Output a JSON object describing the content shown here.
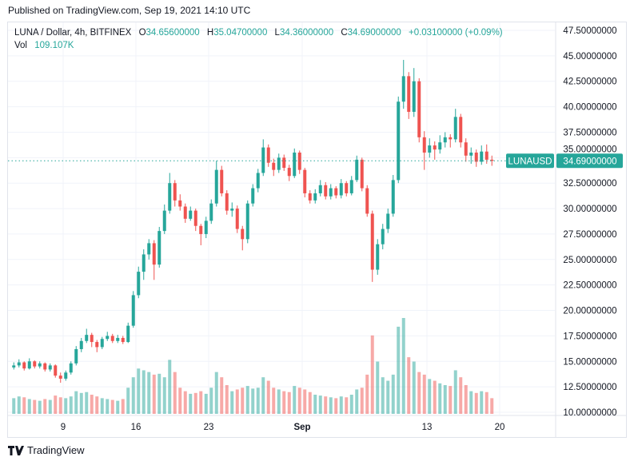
{
  "published": "Published on TradingView.com, Sep 19, 2021 14:10 UTC",
  "legend": {
    "symbol": "LUNA / Dollar, 4h, BITFINEX",
    "o_label": "O",
    "o": "34.65600000",
    "h_label": "H",
    "h": "35.04700000",
    "l_label": "L",
    "l": "34.36000000",
    "c_label": "C",
    "c": "34.69000000",
    "change": "+0.03100000 (+0.09%)",
    "vol_label": "Vol",
    "vol": "109.107K"
  },
  "price_label": {
    "symbol": "LUNAUSD",
    "value": "34.69000000"
  },
  "footer": {
    "brand": "TradingView"
  },
  "colors": {
    "up": "#26a69a",
    "down": "#ef5350",
    "grid": "#f0f3fa",
    "axis_text": "#131722"
  },
  "chart_data": {
    "type": "candlestick",
    "title": "",
    "interval_shown": "4h",
    "note_resolution": "approximate, aggregated to 12h",
    "ylim": [
      10,
      47.5
    ],
    "y_ticks": [
      "10.00000000",
      "12.50000000",
      "15.00000000",
      "17.50000000",
      "20.00000000",
      "22.50000000",
      "25.00000000",
      "27.50000000",
      "30.00000000",
      "32.50000000",
      "35.00000000",
      "37.50000000",
      "40.00000000",
      "42.50000000",
      "45.00000000",
      "47.50000000"
    ],
    "x_ticks": [
      {
        "label": "9",
        "date": "2021-08-09"
      },
      {
        "label": "16",
        "date": "2021-08-16"
      },
      {
        "label": "23",
        "date": "2021-08-23"
      },
      {
        "label": "Sep",
        "date": "2021-09-01"
      },
      {
        "label": "13",
        "date": "2021-09-13"
      },
      {
        "label": "20",
        "date": "2021-09-20"
      }
    ],
    "xlim": [
      "2021-08-04",
      "2021-09-24"
    ],
    "last_price": 34.69,
    "grid": true,
    "columns": [
      "time",
      "open",
      "high",
      "low",
      "close",
      "volume_k"
    ],
    "candles": [
      [
        "2021-08-04 00:00",
        14.4,
        14.9,
        14.2,
        14.6,
        180
      ],
      [
        "2021-08-04 12:00",
        14.6,
        15.2,
        14.4,
        14.9,
        200
      ],
      [
        "2021-08-05 00:00",
        14.9,
        15.0,
        14.1,
        14.3,
        190
      ],
      [
        "2021-08-05 12:00",
        14.3,
        15.3,
        14.2,
        15.0,
        170
      ],
      [
        "2021-08-06 00:00",
        15.0,
        15.1,
        14.3,
        14.5,
        160
      ],
      [
        "2021-08-06 12:00",
        14.5,
        15.0,
        14.3,
        14.8,
        150
      ],
      [
        "2021-08-07 00:00",
        14.8,
        14.9,
        14.0,
        14.2,
        170
      ],
      [
        "2021-08-07 12:00",
        14.2,
        14.8,
        14.0,
        14.6,
        160
      ],
      [
        "2021-08-08 00:00",
        14.6,
        14.7,
        13.4,
        13.6,
        210
      ],
      [
        "2021-08-08 12:00",
        13.6,
        13.9,
        12.9,
        13.3,
        190
      ],
      [
        "2021-08-09 00:00",
        13.3,
        14.1,
        13.1,
        13.9,
        180
      ],
      [
        "2021-08-09 12:00",
        13.9,
        15.0,
        13.7,
        14.8,
        200
      ],
      [
        "2021-08-10 00:00",
        14.8,
        16.5,
        14.6,
        16.2,
        260
      ],
      [
        "2021-08-10 12:00",
        16.2,
        17.3,
        15.9,
        17.0,
        240
      ],
      [
        "2021-08-11 00:00",
        17.0,
        18.2,
        16.8,
        17.6,
        250
      ],
      [
        "2021-08-11 12:00",
        17.6,
        17.8,
        16.4,
        16.9,
        220
      ],
      [
        "2021-08-12 00:00",
        16.9,
        17.1,
        15.9,
        16.4,
        200
      ],
      [
        "2021-08-12 12:00",
        16.4,
        17.4,
        16.2,
        17.2,
        180
      ],
      [
        "2021-08-13 00:00",
        17.2,
        17.9,
        17.0,
        17.5,
        170
      ],
      [
        "2021-08-13 12:00",
        17.5,
        17.7,
        16.8,
        17.0,
        160
      ],
      [
        "2021-08-14 00:00",
        17.0,
        17.6,
        16.8,
        17.3,
        150
      ],
      [
        "2021-08-14 12:00",
        17.3,
        17.5,
        16.7,
        16.9,
        170
      ],
      [
        "2021-08-15 00:00",
        16.9,
        18.8,
        16.8,
        18.5,
        300
      ],
      [
        "2021-08-15 12:00",
        18.5,
        21.9,
        18.3,
        21.5,
        420
      ],
      [
        "2021-08-16 00:00",
        21.5,
        24.3,
        21.2,
        23.8,
        520
      ],
      [
        "2021-08-16 12:00",
        23.8,
        26.0,
        23.0,
        25.5,
        500
      ],
      [
        "2021-08-17 00:00",
        25.5,
        27.0,
        25.0,
        26.6,
        480
      ],
      [
        "2021-08-17 12:00",
        26.6,
        26.9,
        23.0,
        24.5,
        450
      ],
      [
        "2021-08-18 00:00",
        24.5,
        28.2,
        24.2,
        27.8,
        460
      ],
      [
        "2021-08-18 12:00",
        27.8,
        30.4,
        27.5,
        29.8,
        420
      ],
      [
        "2021-08-19 00:00",
        29.8,
        33.5,
        29.5,
        32.5,
        620
      ],
      [
        "2021-08-19 12:00",
        32.5,
        32.8,
        30.2,
        30.8,
        480
      ],
      [
        "2021-08-20 00:00",
        30.8,
        31.4,
        29.8,
        30.2,
        300
      ],
      [
        "2021-08-20 12:00",
        30.2,
        30.5,
        28.6,
        29.0,
        260
      ],
      [
        "2021-08-21 00:00",
        29.0,
        30.2,
        28.8,
        29.8,
        230
      ],
      [
        "2021-08-21 12:00",
        29.8,
        30.0,
        27.8,
        28.3,
        240
      ],
      [
        "2021-08-22 00:00",
        28.3,
        28.5,
        26.4,
        27.5,
        260
      ],
      [
        "2021-08-22 12:00",
        27.5,
        29.2,
        27.1,
        28.8,
        230
      ],
      [
        "2021-08-23 00:00",
        28.8,
        30.9,
        28.5,
        30.5,
        300
      ],
      [
        "2021-08-23 12:00",
        30.5,
        34.7,
        30.2,
        33.8,
        480
      ],
      [
        "2021-08-24 00:00",
        33.8,
        34.2,
        31.2,
        31.5,
        420
      ],
      [
        "2021-08-24 12:00",
        31.5,
        31.8,
        29.4,
        29.8,
        330
      ],
      [
        "2021-08-25 00:00",
        29.8,
        30.6,
        29.2,
        30.0,
        260
      ],
      [
        "2021-08-25 12:00",
        30.0,
        30.3,
        27.6,
        28.0,
        280
      ],
      [
        "2021-08-26 00:00",
        28.0,
        28.3,
        25.9,
        27.0,
        300
      ],
      [
        "2021-08-26 12:00",
        27.0,
        30.8,
        26.6,
        30.5,
        320
      ],
      [
        "2021-08-27 00:00",
        30.5,
        32.4,
        30.2,
        32.0,
        290
      ],
      [
        "2021-08-27 12:00",
        32.0,
        33.9,
        31.6,
        33.5,
        300
      ],
      [
        "2021-08-28 00:00",
        33.5,
        36.8,
        33.2,
        36.0,
        420
      ],
      [
        "2021-08-28 12:00",
        36.0,
        36.3,
        34.1,
        34.5,
        380
      ],
      [
        "2021-08-29 00:00",
        34.5,
        34.9,
        33.2,
        33.8,
        300
      ],
      [
        "2021-08-29 12:00",
        33.8,
        35.4,
        33.5,
        35.0,
        280
      ],
      [
        "2021-08-30 00:00",
        35.0,
        35.3,
        33.7,
        34.0,
        260
      ],
      [
        "2021-08-30 12:00",
        34.0,
        34.3,
        32.7,
        33.2,
        250
      ],
      [
        "2021-08-31 00:00",
        33.2,
        35.9,
        33.0,
        35.5,
        320
      ],
      [
        "2021-08-31 12:00",
        35.5,
        35.7,
        33.4,
        33.8,
        300
      ],
      [
        "2021-09-01 00:00",
        33.8,
        34.0,
        31.1,
        31.5,
        280
      ],
      [
        "2021-09-01 12:00",
        31.5,
        31.8,
        30.5,
        30.8,
        250
      ],
      [
        "2021-09-02 00:00",
        30.8,
        31.9,
        30.5,
        31.5,
        220
      ],
      [
        "2021-09-02 12:00",
        31.5,
        32.8,
        31.2,
        32.3,
        210
      ],
      [
        "2021-09-03 00:00",
        32.3,
        32.6,
        30.9,
        31.2,
        200
      ],
      [
        "2021-09-03 12:00",
        31.2,
        32.4,
        30.9,
        32.0,
        190
      ],
      [
        "2021-09-04 00:00",
        32.0,
        32.2,
        31.0,
        31.3,
        180
      ],
      [
        "2021-09-04 12:00",
        31.3,
        32.9,
        31.0,
        32.5,
        200
      ],
      [
        "2021-09-05 00:00",
        32.5,
        32.7,
        31.2,
        31.5,
        190
      ],
      [
        "2021-09-05 12:00",
        31.5,
        33.2,
        31.3,
        32.8,
        220
      ],
      [
        "2021-09-06 00:00",
        32.8,
        35.2,
        32.6,
        34.8,
        280
      ],
      [
        "2021-09-06 12:00",
        34.8,
        35.0,
        31.7,
        32.0,
        300
      ],
      [
        "2021-09-07 00:00",
        32.0,
        32.3,
        29.2,
        29.5,
        450
      ],
      [
        "2021-09-07 12:00",
        29.5,
        29.8,
        22.8,
        24.0,
        900
      ],
      [
        "2021-09-08 00:00",
        24.0,
        27.0,
        23.5,
        26.5,
        600
      ],
      [
        "2021-09-08 12:00",
        26.5,
        28.5,
        26.0,
        28.0,
        420
      ],
      [
        "2021-09-09 00:00",
        28.0,
        30.0,
        27.6,
        29.5,
        380
      ],
      [
        "2021-09-09 12:00",
        29.5,
        33.3,
        29.2,
        32.8,
        450
      ],
      [
        "2021-09-10 00:00",
        32.8,
        41.0,
        32.5,
        40.5,
        1000
      ],
      [
        "2021-09-10 12:00",
        40.5,
        44.6,
        39.8,
        43.0,
        1100
      ],
      [
        "2021-09-11 00:00",
        43.0,
        43.4,
        38.8,
        39.5,
        650
      ],
      [
        "2021-09-11 12:00",
        39.5,
        43.8,
        39.0,
        42.5,
        600
      ],
      [
        "2021-09-12 00:00",
        42.5,
        42.8,
        36.5,
        37.0,
        480
      ],
      [
        "2021-09-12 12:00",
        37.0,
        37.6,
        33.8,
        35.5,
        450
      ],
      [
        "2021-09-13 00:00",
        35.5,
        36.9,
        35.0,
        36.2,
        400
      ],
      [
        "2021-09-13 12:00",
        36.2,
        36.6,
        34.8,
        35.8,
        380
      ],
      [
        "2021-09-14 00:00",
        35.8,
        37.2,
        35.4,
        36.5,
        350
      ],
      [
        "2021-09-14 12:00",
        36.5,
        37.5,
        36.0,
        37.0,
        330
      ],
      [
        "2021-09-15 00:00",
        37.0,
        37.3,
        36.0,
        36.8,
        320
      ],
      [
        "2021-09-15 12:00",
        36.8,
        39.8,
        36.5,
        39.0,
        500
      ],
      [
        "2021-09-16 00:00",
        39.0,
        39.3,
        36.0,
        36.5,
        420
      ],
      [
        "2021-09-16 12:00",
        36.5,
        36.9,
        34.6,
        35.2,
        330
      ],
      [
        "2021-09-17 00:00",
        35.2,
        36.0,
        34.4,
        35.5,
        260
      ],
      [
        "2021-09-17 12:00",
        35.5,
        35.8,
        34.1,
        34.6,
        240
      ],
      [
        "2021-09-18 00:00",
        34.6,
        36.2,
        34.3,
        35.6,
        260
      ],
      [
        "2021-09-18 12:00",
        35.6,
        36.3,
        34.4,
        34.8,
        250
      ],
      [
        "2021-09-19 00:00",
        34.8,
        35.2,
        34.2,
        34.69,
        180
      ]
    ]
  }
}
